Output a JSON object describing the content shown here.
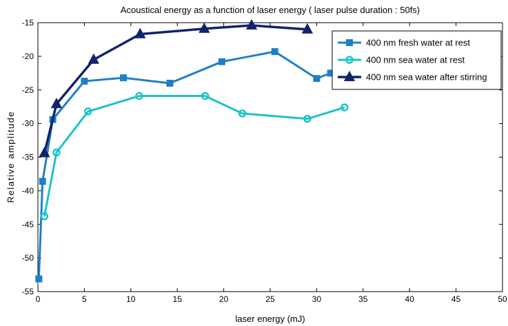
{
  "chart_data": {
    "type": "line",
    "title": "Acoustical energy as a function of laser energy ( laser pulse duration : 50fs)",
    "xlabel": "laser energy (mJ)",
    "ylabel": "Relative amplitude",
    "xlim": [
      0,
      50
    ],
    "ylim": [
      -55,
      -15
    ],
    "xticks": [
      0,
      5,
      10,
      15,
      20,
      25,
      30,
      35,
      40,
      45,
      50
    ],
    "yticks": [
      -55,
      -50,
      -45,
      -40,
      -35,
      -30,
      -25,
      -20,
      -15
    ],
    "grid": false,
    "legend_position": "top-right",
    "series": [
      {
        "name": "400 nm fresh water at rest",
        "color": "#1f7fc8",
        "marker": "square",
        "points": [
          [
            0.1,
            -53.1
          ],
          [
            0.5,
            -38.6
          ],
          [
            1.6,
            -29.4
          ],
          [
            5.0,
            -23.7
          ],
          [
            9.2,
            -23.2
          ],
          [
            14.2,
            -24.0
          ],
          [
            19.8,
            -20.8
          ],
          [
            25.5,
            -19.3
          ],
          [
            30.0,
            -23.3
          ],
          [
            31.5,
            -22.5
          ]
        ]
      },
      {
        "name": "400 nm sea water at rest",
        "color": "#1cc4c4",
        "marker": "circle",
        "points": [
          [
            0.7,
            -43.8
          ],
          [
            2.0,
            -34.3
          ],
          [
            5.4,
            -28.2
          ],
          [
            10.9,
            -25.9
          ],
          [
            18.0,
            -25.9
          ],
          [
            22.0,
            -28.5
          ],
          [
            29.0,
            -29.3
          ],
          [
            33.0,
            -27.6
          ]
        ]
      },
      {
        "name": "400 nm sea water after stirring",
        "color": "#10246a",
        "marker": "triangle",
        "points": [
          [
            0.7,
            -34.4
          ],
          [
            2.0,
            -27.1
          ],
          [
            6.0,
            -20.5
          ],
          [
            11.0,
            -16.7
          ],
          [
            17.9,
            -15.9
          ],
          [
            23.0,
            -15.4
          ],
          [
            29.0,
            -16.0
          ]
        ]
      }
    ]
  }
}
